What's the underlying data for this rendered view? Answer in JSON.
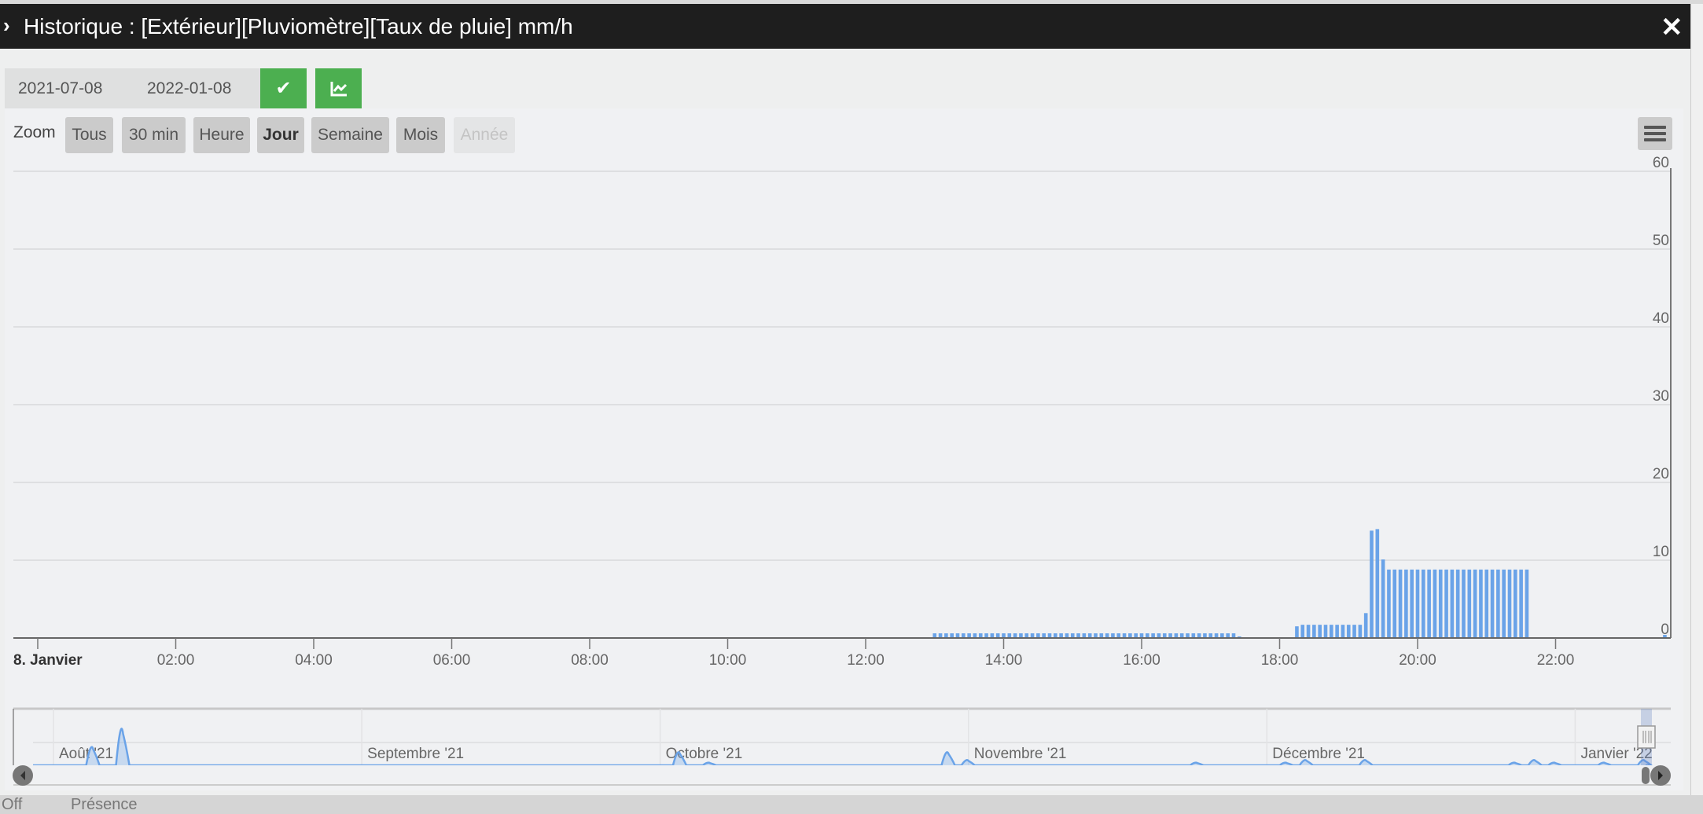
{
  "window": {
    "title": "Historique : [Extérieur][Pluviomètre][Taux de pluie] mm/h",
    "close_icon": "close-icon",
    "expand_icon": "chevron-right-icon"
  },
  "date_range": {
    "start": "2021-07-08",
    "end": "2022-01-08",
    "validate_icon": "check-icon",
    "chart_type_icon": "area-chart-icon"
  },
  "zoom": {
    "label": "Zoom",
    "buttons": [
      {
        "label": "Tous",
        "state": "normal"
      },
      {
        "label": "30 min",
        "state": "normal"
      },
      {
        "label": "Heure",
        "state": "normal"
      },
      {
        "label": "Jour",
        "state": "selected"
      },
      {
        "label": "Semaine",
        "state": "normal"
      },
      {
        "label": "Mois",
        "state": "normal"
      },
      {
        "label": "Année",
        "state": "disabled"
      }
    ],
    "menu_icon": "hamburger-menu-icon"
  },
  "colors": {
    "accent": "#4caf50",
    "series": "#6aa3e8",
    "titlebar": "#1e1e1e"
  },
  "chart_data": {
    "type": "bar",
    "title": "",
    "xlabel": "",
    "ylabel": "",
    "ylim": [
      0,
      60
    ],
    "y_ticks": [
      "0",
      "10",
      "20",
      "30",
      "40",
      "50",
      "60"
    ],
    "y_axis_side": "right",
    "grid": true,
    "x_ticks": [
      "8. Janvier",
      "02:00",
      "04:00",
      "06:00",
      "08:00",
      "10:00",
      "12:00",
      "14:00",
      "16:00",
      "18:00",
      "20:00",
      "22:00"
    ],
    "series": [
      {
        "points": [
          [
            "13:00",
            0.6
          ],
          [
            "13:05",
            0.6
          ],
          [
            "13:10",
            0.6
          ],
          [
            "13:15",
            0.6
          ],
          [
            "13:20",
            0.6
          ],
          [
            "13:25",
            0.6
          ],
          [
            "13:30",
            0.6
          ],
          [
            "13:35",
            0.6
          ],
          [
            "13:40",
            0.6
          ],
          [
            "13:45",
            0.6
          ],
          [
            "13:50",
            0.6
          ],
          [
            "13:55",
            0.6
          ],
          [
            "14:00",
            0.6
          ],
          [
            "14:05",
            0.6
          ],
          [
            "14:10",
            0.6
          ],
          [
            "14:15",
            0.6
          ],
          [
            "14:20",
            0.6
          ],
          [
            "14:25",
            0.6
          ],
          [
            "14:30",
            0.6
          ],
          [
            "14:35",
            0.6
          ],
          [
            "14:40",
            0.6
          ],
          [
            "14:45",
            0.6
          ],
          [
            "14:50",
            0.6
          ],
          [
            "14:55",
            0.6
          ],
          [
            "15:00",
            0.6
          ],
          [
            "15:05",
            0.6
          ],
          [
            "15:10",
            0.6
          ],
          [
            "15:15",
            0.6
          ],
          [
            "15:20",
            0.6
          ],
          [
            "15:25",
            0.6
          ],
          [
            "15:30",
            0.6
          ],
          [
            "15:35",
            0.6
          ],
          [
            "15:40",
            0.6
          ],
          [
            "15:45",
            0.6
          ],
          [
            "15:50",
            0.6
          ],
          [
            "15:55",
            0.6
          ],
          [
            "16:00",
            0.6
          ],
          [
            "16:05",
            0.6
          ],
          [
            "16:10",
            0.6
          ],
          [
            "16:15",
            0.6
          ],
          [
            "16:20",
            0.6
          ],
          [
            "16:25",
            0.6
          ],
          [
            "16:30",
            0.6
          ],
          [
            "16:35",
            0.6
          ],
          [
            "16:40",
            0.6
          ],
          [
            "16:45",
            0.6
          ],
          [
            "16:50",
            0.6
          ],
          [
            "16:55",
            0.6
          ],
          [
            "17:00",
            0.6
          ],
          [
            "17:05",
            0.6
          ],
          [
            "17:10",
            0.6
          ],
          [
            "17:15",
            0.6
          ],
          [
            "17:20",
            0.6
          ],
          [
            "17:25",
            0.2
          ],
          [
            "18:15",
            1.5
          ],
          [
            "18:20",
            1.7
          ],
          [
            "18:25",
            1.7
          ],
          [
            "18:30",
            1.7
          ],
          [
            "18:35",
            1.7
          ],
          [
            "18:40",
            1.7
          ],
          [
            "18:45",
            1.7
          ],
          [
            "18:50",
            1.7
          ],
          [
            "18:55",
            1.7
          ],
          [
            "19:00",
            1.7
          ],
          [
            "19:05",
            1.7
          ],
          [
            "19:10",
            1.7
          ],
          [
            "19:15",
            3.2
          ],
          [
            "19:20",
            13.8
          ],
          [
            "19:25",
            14.0
          ],
          [
            "19:30",
            10.1
          ],
          [
            "19:35",
            8.8
          ],
          [
            "19:40",
            8.8
          ],
          [
            "19:45",
            8.8
          ],
          [
            "19:50",
            8.8
          ],
          [
            "19:55",
            8.8
          ],
          [
            "20:00",
            8.8
          ],
          [
            "20:05",
            8.8
          ],
          [
            "20:10",
            8.8
          ],
          [
            "20:15",
            8.8
          ],
          [
            "20:20",
            8.8
          ],
          [
            "20:25",
            8.8
          ],
          [
            "20:30",
            8.8
          ],
          [
            "20:35",
            8.8
          ],
          [
            "20:40",
            8.8
          ],
          [
            "20:45",
            8.8
          ],
          [
            "20:50",
            8.8
          ],
          [
            "20:55",
            8.8
          ],
          [
            "21:00",
            8.8
          ],
          [
            "21:05",
            8.8
          ],
          [
            "21:10",
            8.8
          ],
          [
            "21:15",
            8.8
          ],
          [
            "21:20",
            8.8
          ],
          [
            "21:25",
            8.8
          ],
          [
            "21:30",
            8.8
          ],
          [
            "21:35",
            8.8
          ],
          [
            "23:35",
            0.4
          ]
        ]
      }
    ],
    "navigator": {
      "type": "area",
      "month_labels": [
        "Août '21",
        "Septembre '21",
        "Octobre '21",
        "Novembre '21",
        "Décembre '21",
        "Janvier '22"
      ],
      "peaks": [
        [
          "2021-08-05",
          7
        ],
        [
          "2021-08-08",
          14
        ],
        [
          "2021-10-03",
          5
        ],
        [
          "2021-10-06",
          1
        ],
        [
          "2021-10-30",
          5
        ],
        [
          "2021-11-01",
          2
        ],
        [
          "2021-11-24",
          1
        ],
        [
          "2021-12-03",
          1
        ],
        [
          "2021-12-05",
          2
        ],
        [
          "2021-12-11",
          2
        ],
        [
          "2021-12-26",
          1
        ],
        [
          "2021-12-28",
          2
        ],
        [
          "2021-12-30",
          1
        ],
        [
          "2022-01-04",
          1
        ],
        [
          "2022-01-08",
          2
        ]
      ]
    }
  },
  "background_page": {
    "items": [
      "Off",
      "Présence"
    ]
  }
}
